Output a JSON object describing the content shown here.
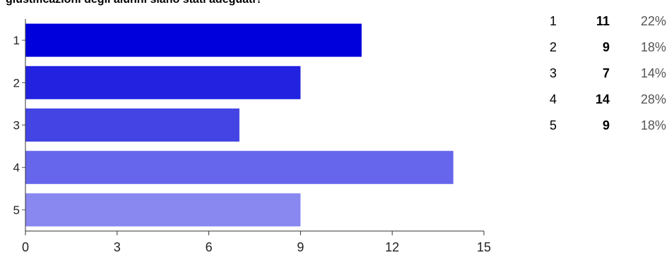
{
  "question": {
    "title_visible_fragment": "giustificazioni degli alunni siano stati adeguati?"
  },
  "chart_data": {
    "type": "bar",
    "orientation": "horizontal",
    "categories": [
      "1",
      "2",
      "3",
      "4",
      "5"
    ],
    "values": [
      11,
      9,
      7,
      14,
      9
    ],
    "xlim": [
      0,
      15
    ],
    "xticks": [
      0,
      3,
      6,
      9,
      12,
      15
    ],
    "grid": false,
    "colors": [
      "#0000dc",
      "#2222e0",
      "#4444e4",
      "#6666ec",
      "#8888f0"
    ]
  },
  "summary": {
    "rows": [
      {
        "option": "1",
        "count": "11",
        "percent": "22%"
      },
      {
        "option": "2",
        "count": "9",
        "percent": "18%"
      },
      {
        "option": "3",
        "count": "7",
        "percent": "14%"
      },
      {
        "option": "4",
        "count": "14",
        "percent": "28%"
      },
      {
        "option": "5",
        "count": "9",
        "percent": "18%"
      }
    ]
  }
}
